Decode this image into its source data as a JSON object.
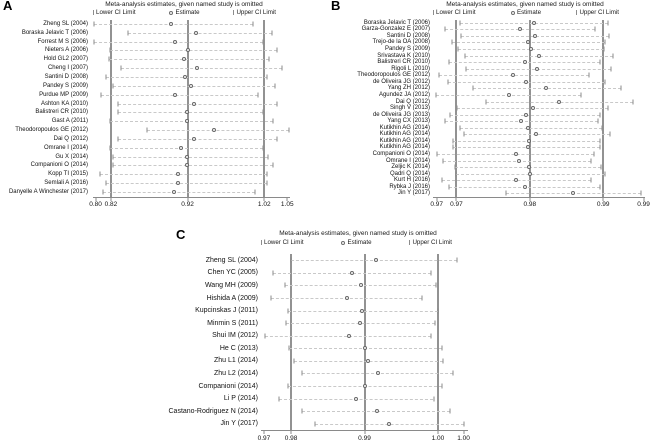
{
  "colors": {
    "background": "#ffffff",
    "text": "#141414",
    "reference_line": "#929292",
    "ci_dash": "#c9c9c9",
    "marker_stroke": "#686868"
  },
  "chart_data": [
    {
      "type": "scatter",
      "panel_label": "A",
      "title": "Meta-analysis estimates, given named study is omitted",
      "legend": {
        "lower_ci": "Lower CI Limit",
        "estimate": "Estimate",
        "upper_ci": "Upper CI Limit"
      },
      "xlim": [
        0.7966,
        1.0536
      ],
      "ref_lines": [
        0.82,
        0.92,
        1.02
      ],
      "x_ticks": [
        {
          "value": 0.8,
          "label": "0.80"
        },
        {
          "value": 0.82,
          "label": "0.82"
        },
        {
          "value": 0.92,
          "label": "0.92"
        },
        {
          "value": 1.02,
          "label": "1.02"
        },
        {
          "value": 1.05,
          "label": "1.05"
        }
      ],
      "rows": [
        {
          "study": "Zheng SL (2004)",
          "lower": 0.798,
          "estimate": 0.898,
          "upper": 1.005
        },
        {
          "study": "Boraska Jelavic T (2006)",
          "lower": 0.842,
          "estimate": 0.931,
          "upper": 1.03
        },
        {
          "study": "Forrest M S (2006)",
          "lower": 0.798,
          "estimate": 0.904,
          "upper": 1.018
        },
        {
          "study": "Nieters A (2006)",
          "lower": 0.819,
          "estimate": 0.92,
          "upper": 1.037
        },
        {
          "study": "Hold GL2 (2007)",
          "lower": 0.818,
          "estimate": 0.915,
          "upper": 1.026
        },
        {
          "study": "Cheng I (2007)",
          "lower": 0.833,
          "estimate": 0.932,
          "upper": 1.043
        },
        {
          "study": "Santini D (2008)",
          "lower": 0.814,
          "estimate": 0.916,
          "upper": 1.024
        },
        {
          "study": "Pandey S (2009)",
          "lower": 0.823,
          "estimate": 0.925,
          "upper": 1.034
        },
        {
          "study": "Purdue MP (2009)",
          "lower": 0.807,
          "estimate": 0.903,
          "upper": 1.012
        },
        {
          "study": "Ashton KA (2010)",
          "lower": 0.829,
          "estimate": 0.928,
          "upper": 1.037
        },
        {
          "study": "Balistreri CR (2010)",
          "lower": 0.829,
          "estimate": 0.919,
          "upper": 1.019
        },
        {
          "study": "Gast A (2011)",
          "lower": 0.819,
          "estimate": 0.919,
          "upper": 1.032
        },
        {
          "study": "Theodoropoulos GE (2012)",
          "lower": 0.867,
          "estimate": 0.955,
          "upper": 1.052
        },
        {
          "study": "Dai Q (2012)",
          "lower": 0.829,
          "estimate": 0.928,
          "upper": 1.037
        },
        {
          "study": "Omrane I (2014)",
          "lower": 0.819,
          "estimate": 0.912,
          "upper": 1.019
        },
        {
          "study": "Gu X (2014)",
          "lower": 0.823,
          "estimate": 0.919,
          "upper": 1.025
        },
        {
          "study": "Companioni O (2014)",
          "lower": 0.823,
          "estimate": 0.919,
          "upper": 1.032
        },
        {
          "study": "Kopp TI (2015)",
          "lower": 0.806,
          "estimate": 0.908,
          "upper": 1.024
        },
        {
          "study": "Semlali A (2016)",
          "lower": 0.814,
          "estimate": 0.908,
          "upper": 1.024
        },
        {
          "study": "Danyelle A Winchester (2017)",
          "lower": 0.81,
          "estimate": 0.902,
          "upper": 1.008
        }
      ]
    },
    {
      "type": "scatter",
      "panel_label": "B",
      "title": "Meta-analysis estimates, given named study is omitted",
      "legend": {
        "lower_ci": "Lower CI Limit",
        "estimate": "Estimate",
        "upper_ci": "Upper CI Limit"
      },
      "xlim": [
        0.9668,
        0.9957
      ],
      "ref_lines": [
        0.97,
        0.98,
        0.99
      ],
      "x_ticks": [
        {
          "value": 0.9673,
          "label": "0.97"
        },
        {
          "value": 0.97,
          "label": "0.97"
        },
        {
          "value": 0.98,
          "label": "0.98"
        },
        {
          "value": 0.99,
          "label": "0.99"
        },
        {
          "value": 0.9955,
          "label": "0.99"
        }
      ],
      "rows": [
        {
          "study": "Boraska Jelavic T (2006)",
          "lower": 0.9705,
          "estimate": 0.9806,
          "upper": 0.9906
        },
        {
          "study": "Garza-Gonzalez E (2007)",
          "lower": 0.9685,
          "estimate": 0.9787,
          "upper": 0.9889
        },
        {
          "study": "Santini D (2008)",
          "lower": 0.9706,
          "estimate": 0.9807,
          "upper": 0.9908
        },
        {
          "study": "Trejo-de la OA (2008)",
          "lower": 0.9694,
          "estimate": 0.9798,
          "upper": 0.9902
        },
        {
          "study": "Pandey S (2009)",
          "lower": 0.9702,
          "estimate": 0.9801,
          "upper": 0.9901
        },
        {
          "study": "Srivastava K (2010)",
          "lower": 0.9712,
          "estimate": 0.9813,
          "upper": 0.9913
        },
        {
          "study": "Balistreri CR (2010)",
          "lower": 0.969,
          "estimate": 0.9793,
          "upper": 0.9895
        },
        {
          "study": "Rigoli L (2010)",
          "lower": 0.9713,
          "estimate": 0.981,
          "upper": 0.9911
        },
        {
          "study": "Theodoropoulos GE (2012)",
          "lower": 0.9676,
          "estimate": 0.9777,
          "upper": 0.9881
        },
        {
          "study": "de Oliveira JG (2012)",
          "lower": 0.9689,
          "estimate": 0.9795,
          "upper": 0.9902
        },
        {
          "study": "Yang ZH (2012)",
          "lower": 0.9722,
          "estimate": 0.9822,
          "upper": 0.9924
        },
        {
          "study": "Agundez JA (2012)",
          "lower": 0.9672,
          "estimate": 0.9771,
          "upper": 0.987
        },
        {
          "study": "Dai Q (2012)",
          "lower": 0.974,
          "estimate": 0.984,
          "upper": 0.994
        },
        {
          "study": "Singh V (2013)",
          "lower": 0.9701,
          "estimate": 0.9805,
          "upper": 0.9906
        },
        {
          "study": "de Oliveira JG (2013)",
          "lower": 0.9691,
          "estimate": 0.9795,
          "upper": 0.9896
        },
        {
          "study": "Yang CX (2013)",
          "lower": 0.9684,
          "estimate": 0.9788,
          "upper": 0.9893
        },
        {
          "study": "Kutikhin AG (2014)",
          "lower": 0.9705,
          "estimate": 0.9797,
          "upper": 0.9899
        },
        {
          "study": "Kutikhin AG (2014)",
          "lower": 0.971,
          "estimate": 0.9808,
          "upper": 0.9909
        },
        {
          "study": "Kutikhin AG (2014)",
          "lower": 0.9695,
          "estimate": 0.9799,
          "upper": 0.9896
        },
        {
          "study": "Kutikhin AG (2014)",
          "lower": 0.9695,
          "estimate": 0.9797,
          "upper": 0.9896
        },
        {
          "study": "Companioni O (2014)",
          "lower": 0.9674,
          "estimate": 0.9781,
          "upper": 0.9888
        },
        {
          "study": "Omrane I (2014)",
          "lower": 0.9682,
          "estimate": 0.9785,
          "upper": 0.9884
        },
        {
          "study": "Zeljic K (2014)",
          "lower": 0.9698,
          "estimate": 0.9799,
          "upper": 0.9897
        },
        {
          "study": "Qadri Q (2014)",
          "lower": 0.97,
          "estimate": 0.98,
          "upper": 0.9903
        },
        {
          "study": "Kurt H (2016)",
          "lower": 0.968,
          "estimate": 0.9781,
          "upper": 0.9884
        },
        {
          "study": "Rybka J (2016)",
          "lower": 0.969,
          "estimate": 0.9793,
          "upper": 0.9896
        },
        {
          "study": "Jin Y (2017)",
          "lower": 0.9768,
          "estimate": 0.9859,
          "upper": 0.9952
        }
      ]
    },
    {
      "type": "scatter",
      "panel_label": "C",
      "title": "Meta-analysis estimates, given named study is omitted",
      "legend": {
        "lower_ci": "Lower CI Limit",
        "estimate": "Estimate",
        "upper_ci": "Upper CI Limit"
      },
      "xlim": [
        0.9759,
        1.0041
      ],
      "ref_lines": [
        0.98,
        0.99,
        1.0
      ],
      "x_ticks": [
        {
          "value": 0.9763,
          "label": "0.97"
        },
        {
          "value": 0.98,
          "label": "0.98"
        },
        {
          "value": 0.99,
          "label": "0.99"
        },
        {
          "value": 1.0,
          "label": "1.00"
        },
        {
          "value": 1.0035,
          "label": "1.00"
        }
      ],
      "rows": [
        {
          "study": "Zheng SL (2004)",
          "lower": 0.98,
          "estimate": 0.9915,
          "upper": 1.0026
        },
        {
          "study": "Chen YC (2005)",
          "lower": 0.9776,
          "estimate": 0.9883,
          "upper": 0.9991
        },
        {
          "study": "Wang MH (2009)",
          "lower": 0.9792,
          "estimate": 0.9895,
          "upper": 0.9997
        },
        {
          "study": "Hishida A (2009)",
          "lower": 0.9773,
          "estimate": 0.9876,
          "upper": 0.9978
        },
        {
          "study": "Kupcinskas J (2011)",
          "lower": 0.9796,
          "estimate": 0.9897,
          "upper": 1.0
        },
        {
          "study": "Minmin S (2011)",
          "lower": 0.9793,
          "estimate": 0.9894,
          "upper": 0.9996
        },
        {
          "study": "Shui IM (2012)",
          "lower": 0.9764,
          "estimate": 0.9879,
          "upper": 0.999
        },
        {
          "study": "He C (2013)",
          "lower": 0.9797,
          "estimate": 0.99,
          "upper": 1.0006
        },
        {
          "study": "Zhu L1 (2014)",
          "lower": 0.9804,
          "estimate": 0.9905,
          "upper": 1.0007
        },
        {
          "study": "Zhu L2 (2014)",
          "lower": 0.9815,
          "estimate": 0.9918,
          "upper": 1.0021
        },
        {
          "study": "Companioni (2014)",
          "lower": 0.9796,
          "estimate": 0.99,
          "upper": 1.0006
        },
        {
          "study": "Li P (2014)",
          "lower": 0.9784,
          "estimate": 0.9889,
          "upper": 0.9994
        },
        {
          "study": "Castano-Rodriguez N (2014)",
          "lower": 0.9815,
          "estimate": 0.9917,
          "upper": 1.0017
        },
        {
          "study": "Jin Y (2017)",
          "lower": 0.9832,
          "estimate": 0.9934,
          "upper": 1.0036
        }
      ]
    }
  ]
}
